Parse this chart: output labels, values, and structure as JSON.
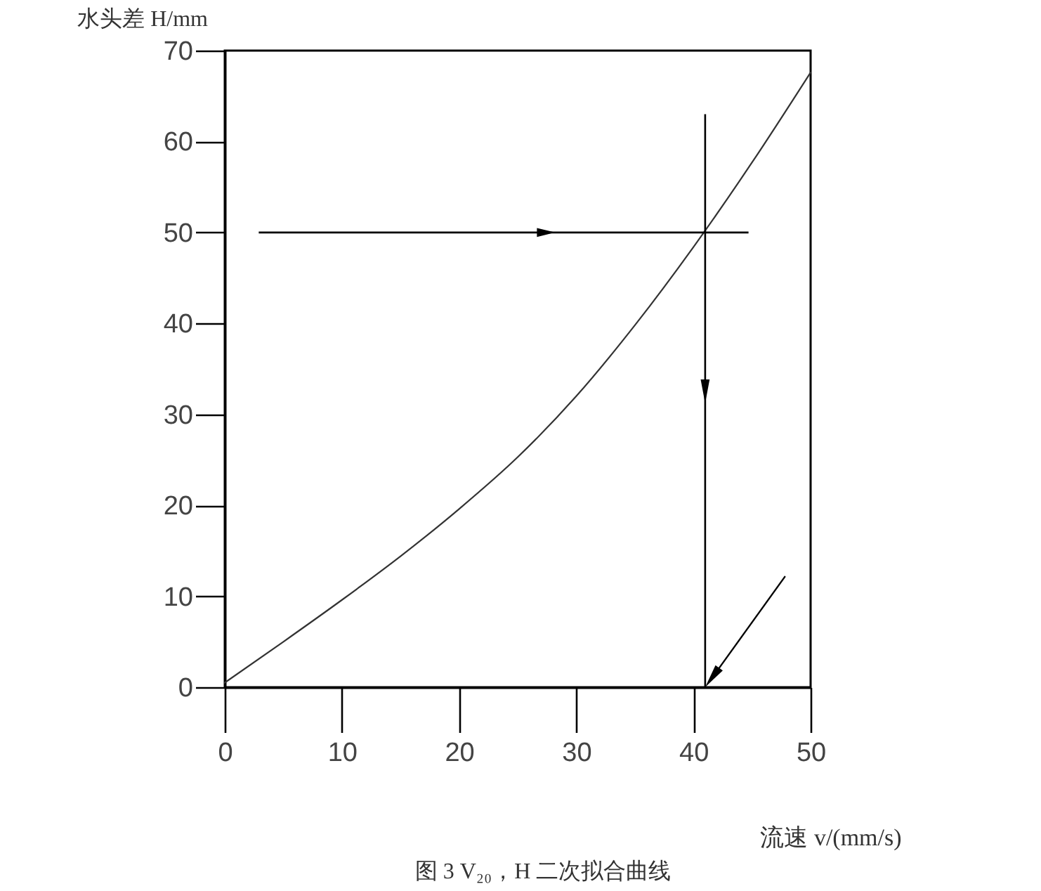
{
  "chart_data": {
    "type": "line",
    "title": "图 3 V₂₀，H 二次拟合曲线",
    "xlabel": "流速 v/(mm/s)",
    "ylabel": "水头差 H/mm",
    "x": [
      0,
      5,
      10,
      15,
      20,
      25,
      30,
      35,
      40,
      45,
      50
    ],
    "series": [
      {
        "color": "#333333",
        "values": [
          0.5,
          5.0,
          9.6,
          14.4,
          19.6,
          25.3,
          32.0,
          39.8,
          48.4,
          57.7,
          67.6
        ]
      }
    ],
    "xlim": [
      0,
      50
    ],
    "ylim": [
      0,
      70
    ],
    "xticks": [
      0,
      10,
      20,
      30,
      40,
      50
    ],
    "yticks": [
      0,
      10,
      20,
      30,
      40,
      50,
      60,
      70
    ],
    "grid": false,
    "ref_lines": [
      {
        "axis": "y",
        "value": 50,
        "color": "#000000"
      },
      {
        "axis": "x",
        "value": 41,
        "color": "#000000"
      }
    ]
  }
}
